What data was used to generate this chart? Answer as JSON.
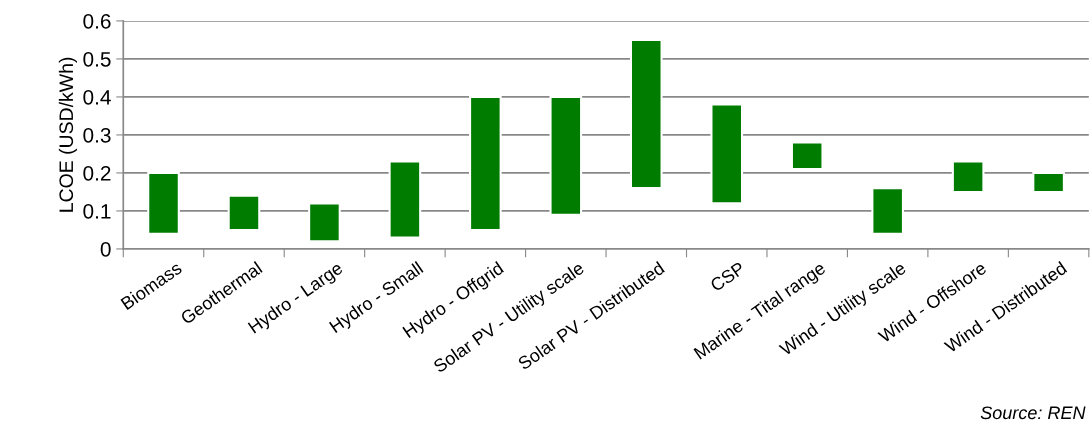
{
  "chart_data": {
    "type": "bar",
    "ylabel": "LCOE (USD/kWh)",
    "categories": [
      "Biomass",
      "Geothermal",
      "Hydro - Large",
      "Hydro - Small",
      "Hydro - Offgrid",
      "Solar PV - Utility scale",
      "Solar PV - Distributed",
      "CSP",
      "Marine - Tital range",
      "Wind - Utility scale",
      "Wind - Offshore",
      "Wind - Distributed"
    ],
    "base": [
      0.04,
      0.05,
      0.02,
      0.03,
      0.05,
      0.09,
      0.16,
      0.12,
      0.21,
      0.04,
      0.15,
      0.15
    ],
    "values": [
      0.16,
      0.09,
      0.1,
      0.2,
      0.35,
      0.31,
      0.39,
      0.26,
      0.07,
      0.12,
      0.08,
      0.05
    ],
    "color": "#007d00",
    "ylim": [
      0,
      0.6
    ],
    "yticks": [
      0,
      0.1,
      0.2,
      0.3,
      0.4,
      0.5,
      0.6
    ],
    "grid": "y",
    "legend": false,
    "annotations": [
      "Source: REN"
    ]
  }
}
